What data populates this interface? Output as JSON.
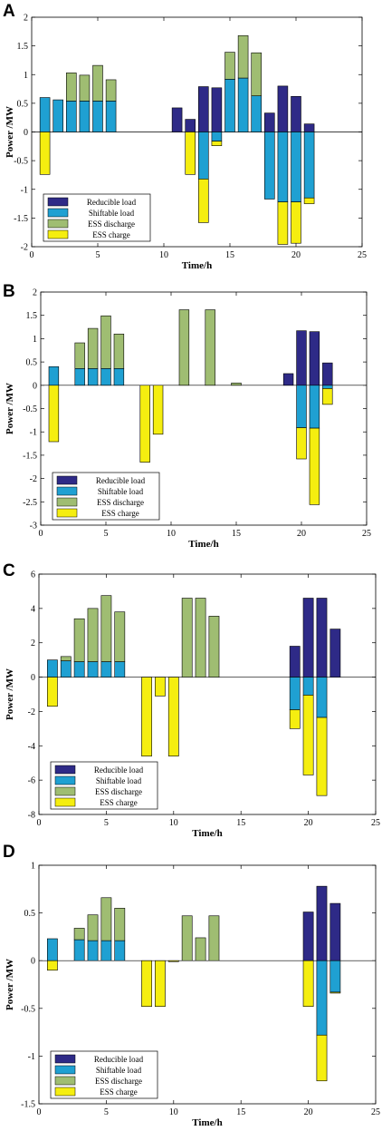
{
  "colors": {
    "reducible": "#2e2a87",
    "shiftable": "#1fa0d2",
    "ess_discharge": "#9fbd72",
    "ess_charge": "#f5ee10"
  },
  "chart_data": [
    {
      "panel": "A",
      "type": "bar",
      "stacked": true,
      "xlabel": "Time/h",
      "ylabel": "Power /MW",
      "xlim": [
        0,
        25
      ],
      "ylim": [
        -2,
        2
      ],
      "xticks": [
        "0",
        "5",
        "10",
        "15",
        "20",
        "25"
      ],
      "yticks": [
        "-2",
        "-1.5",
        "-1",
        "-0.5",
        "0",
        "0.5",
        "1",
        "1.5",
        "2"
      ],
      "legend": "bottom-left",
      "x": [
        1,
        2,
        3,
        4,
        5,
        6,
        7,
        8,
        9,
        10,
        11,
        12,
        13,
        14,
        15,
        16,
        17,
        18,
        19,
        20,
        21
      ],
      "series": [
        {
          "name": "Reducible load",
          "values": [
            0,
            0,
            0,
            0,
            0,
            0,
            0,
            0,
            0,
            0,
            0.42,
            0.22,
            0.79,
            0.77,
            0,
            0,
            0,
            0.33,
            0.8,
            0.62,
            0.14
          ]
        },
        {
          "name": "Shiftable load",
          "values": [
            0.6,
            0.56,
            0.54,
            0.54,
            0.54,
            0.54,
            0,
            0,
            0,
            0,
            0,
            0,
            -0.82,
            -0.16,
            0.92,
            0.94,
            0.63,
            -1.17,
            -1.22,
            -1.22,
            -1.15
          ]
        },
        {
          "name": "ESS discharge",
          "values": [
            0,
            0,
            0.49,
            0.45,
            0.62,
            0.37,
            0,
            0,
            0,
            0,
            0,
            0,
            0,
            0,
            0.47,
            0.74,
            0.75,
            0,
            0,
            0,
            0
          ]
        },
        {
          "name": "ESS charge",
          "values": [
            -0.74,
            0,
            0,
            0,
            0,
            0,
            0,
            0,
            0,
            0,
            0,
            -0.74,
            -0.76,
            -0.08,
            0,
            0,
            0,
            0,
            -0.74,
            -0.72,
            -0.1
          ]
        }
      ]
    },
    {
      "panel": "B",
      "type": "bar",
      "stacked": true,
      "xlabel": "Time/h",
      "ylabel": "Power /MW",
      "xlim": [
        0,
        25
      ],
      "ylim": [
        -3,
        2
      ],
      "xticks": [
        "0",
        "5",
        "10",
        "15",
        "20",
        "25"
      ],
      "yticks": [
        "-3",
        "-2.5",
        "-2",
        "-1.5",
        "-1",
        "-0.5",
        "0",
        "0.5",
        "1",
        "1.5",
        "2"
      ],
      "legend": "bottom-left",
      "x": [
        1,
        2,
        3,
        4,
        5,
        6,
        7,
        8,
        9,
        10,
        11,
        12,
        13,
        14,
        15,
        16,
        17,
        18,
        19,
        20,
        21,
        22
      ],
      "series": [
        {
          "name": "Reducible load",
          "values": [
            0,
            0,
            0,
            0,
            0,
            0,
            0,
            0,
            0,
            0,
            0,
            0,
            0,
            0,
            0,
            0,
            0,
            0,
            0.25,
            1.17,
            1.15,
            0.48
          ]
        },
        {
          "name": "Shiftable load",
          "values": [
            0.4,
            0,
            0.36,
            0.36,
            0.36,
            0.36,
            0,
            0,
            0,
            0,
            0,
            0,
            0,
            0,
            0,
            0,
            0,
            0,
            0,
            -0.91,
            -0.92,
            -0.07
          ]
        },
        {
          "name": "ESS discharge",
          "values": [
            0,
            0,
            0.55,
            0.86,
            1.13,
            0.74,
            0,
            0,
            0,
            0,
            1.62,
            0,
            1.62,
            0,
            0.05,
            0,
            0,
            0,
            0,
            0,
            0,
            0
          ]
        },
        {
          "name": "ESS charge",
          "values": [
            -1.21,
            0,
            0,
            0,
            0,
            0,
            0,
            -1.65,
            -1.05,
            0,
            0,
            0,
            0,
            0,
            0,
            0,
            0,
            0,
            0,
            -0.67,
            -1.64,
            -0.34
          ]
        }
      ]
    },
    {
      "panel": "C",
      "type": "bar",
      "stacked": true,
      "xlabel": "Time/h",
      "ylabel": "Power /MW",
      "xlim": [
        0,
        25
      ],
      "ylim": [
        -8,
        6
      ],
      "xticks": [
        "0",
        "5",
        "10",
        "15",
        "20",
        "25"
      ],
      "yticks": [
        "-8",
        "-6",
        "-4",
        "-2",
        "0",
        "2",
        "4",
        "6"
      ],
      "legend": "bottom-left",
      "x": [
        1,
        2,
        3,
        4,
        5,
        6,
        7,
        8,
        9,
        10,
        11,
        12,
        13,
        14,
        15,
        16,
        17,
        18,
        19,
        20,
        21,
        22
      ],
      "series": [
        {
          "name": "Reducible load",
          "values": [
            0,
            0,
            0,
            0,
            0,
            0,
            0,
            0,
            0,
            0,
            0,
            0,
            0,
            0,
            0,
            0,
            0,
            0,
            1.8,
            4.6,
            4.6,
            2.8
          ]
        },
        {
          "name": "Shiftable load",
          "values": [
            1.0,
            0.95,
            0.9,
            0.9,
            0.9,
            0.9,
            0,
            0,
            0,
            0,
            0,
            0,
            0,
            0,
            0,
            0,
            0,
            0,
            -1.9,
            -1.05,
            -2.35,
            0
          ]
        },
        {
          "name": "ESS discharge",
          "values": [
            0,
            0.25,
            2.5,
            3.1,
            3.85,
            2.9,
            0,
            0,
            0,
            0,
            4.6,
            4.6,
            3.55,
            0,
            0,
            0,
            0,
            0,
            0,
            0,
            0,
            0
          ]
        },
        {
          "name": "ESS charge",
          "values": [
            -1.7,
            0,
            0,
            0,
            0,
            0,
            0,
            -4.6,
            -1.1,
            -4.6,
            0,
            0,
            0,
            0,
            0,
            0,
            0,
            0,
            -1.1,
            -4.65,
            -4.55,
            0
          ]
        }
      ]
    },
    {
      "panel": "D",
      "type": "bar",
      "stacked": true,
      "xlabel": "Time/h",
      "ylabel": "Power /MW",
      "xlim": [
        0,
        25
      ],
      "ylim": [
        -1.5,
        1
      ],
      "xticks": [
        "0",
        "5",
        "10",
        "15",
        "20",
        "25"
      ],
      "yticks": [
        "-1.5",
        "-1",
        "-0.5",
        "0",
        "0.5",
        "1"
      ],
      "legend": "bottom-left",
      "x": [
        1,
        2,
        3,
        4,
        5,
        6,
        7,
        8,
        9,
        10,
        11,
        12,
        13,
        14,
        15,
        16,
        17,
        18,
        19,
        20,
        21,
        22
      ],
      "series": [
        {
          "name": "Reducible load",
          "values": [
            0,
            0,
            0,
            0,
            0,
            0,
            0,
            0,
            0,
            0,
            0,
            0,
            0,
            0,
            0,
            0,
            0,
            0,
            0,
            0.51,
            0.78,
            0.6
          ]
        },
        {
          "name": "Shiftable load",
          "values": [
            0.23,
            0,
            0.22,
            0.21,
            0.21,
            0.21,
            0,
            0,
            0,
            0,
            0,
            0,
            0,
            0,
            0,
            0,
            0,
            0,
            0,
            0,
            -0.78,
            -0.33
          ]
        },
        {
          "name": "ESS discharge",
          "values": [
            0,
            0,
            0.12,
            0.27,
            0.45,
            0.34,
            0,
            0,
            0,
            0,
            0.47,
            0.24,
            0.47,
            0,
            0,
            0,
            0,
            0,
            0,
            0,
            0,
            0
          ]
        },
        {
          "name": "ESS charge",
          "values": [
            -0.1,
            0,
            0,
            0,
            0,
            0,
            0,
            -0.48,
            -0.48,
            -0.01,
            0,
            0,
            0,
            0,
            0,
            0,
            0,
            0,
            0,
            -0.48,
            -0.48,
            -0.01
          ]
        }
      ]
    }
  ]
}
